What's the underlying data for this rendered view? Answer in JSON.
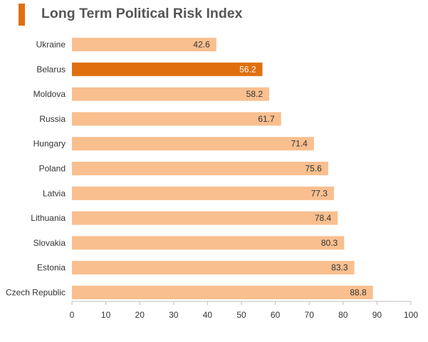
{
  "chart_data": {
    "type": "bar",
    "orientation": "horizontal",
    "title": "Long Term Political Risk Index",
    "xlabel": "",
    "ylabel": "",
    "categories": [
      "Ukraine",
      "Belarus",
      "Moldova",
      "Russia",
      "Hungary",
      "Poland",
      "Latvia",
      "Lithuania",
      "Slovakia",
      "Estonia",
      "Czech Republic"
    ],
    "values": [
      42.6,
      56.2,
      58.2,
      61.7,
      71.4,
      75.6,
      77.3,
      78.4,
      80.3,
      83.3,
      88.8
    ],
    "value_labels": [
      "42.6",
      "56.2",
      "58.2",
      "61.7",
      "71.4",
      "75.6",
      "77.3",
      "78.4",
      "80.3",
      "83.3",
      "88.8"
    ],
    "highlight": "Belarus",
    "xlim": [
      0,
      100
    ],
    "xticks": [
      "0",
      "10",
      "20",
      "30",
      "40",
      "50",
      "60",
      "70",
      "80",
      "90",
      "100"
    ],
    "grid": false,
    "legend": "none",
    "colors": {
      "bar": "#f9bf8f",
      "highlight": "#e0700f",
      "accent": "#e0700f",
      "label": "#333333",
      "highlight_label": "#ffffff"
    }
  }
}
